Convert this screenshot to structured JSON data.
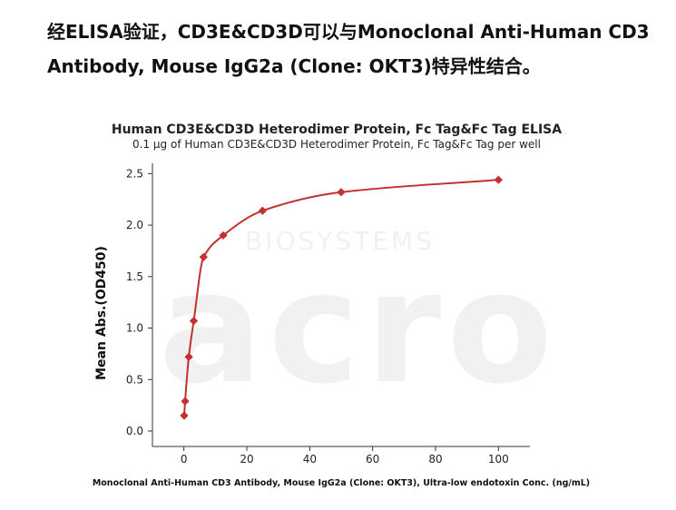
{
  "heading": {
    "line1": "经ELISA验证，CD3E&CD3D可以与Monoclonal  Anti-Human CD3",
    "line2": "Antibody, Mouse IgG2a (Clone: OKT3)特异性结合。"
  },
  "colors": {
    "series": "#c0312f",
    "axis": "#333333"
  },
  "chart_data": {
    "type": "scatter",
    "title": "Human CD3E&CD3D Heterodimer Protein, Fc Tag&Fc Tag ELISA",
    "subtitle": "0.1 μg of Human CD3E&CD3D Heterodimer Protein, Fc Tag&Fc Tag per well",
    "xlabel": "Monoclonal Anti-Human CD3 Antibody, Mouse IgG2a (Clone: OKT3), Ultra-low endotoxin Conc. (ng/mL)",
    "ylabel": "Mean Abs.(OD450)",
    "xlim": [
      -10,
      110
    ],
    "ylim": [
      -0.15,
      2.6
    ],
    "xticks": [
      0,
      20,
      40,
      60,
      80,
      100
    ],
    "yticks": [
      0.0,
      0.5,
      1.0,
      1.5,
      2.0,
      2.5
    ],
    "ytick_labels": [
      "0.0",
      "0.5",
      "1.0",
      "1.5",
      "2.0",
      "2.5"
    ],
    "grid": false,
    "fit_curve": true,
    "series": [
      {
        "x": [
          0.1,
          0.39,
          1.56,
          3.13,
          6.25,
          12.5,
          25,
          50,
          100
        ],
        "y": [
          0.15,
          0.29,
          0.72,
          1.07,
          1.69,
          1.9,
          2.14,
          2.32,
          2.44
        ]
      }
    ]
  }
}
